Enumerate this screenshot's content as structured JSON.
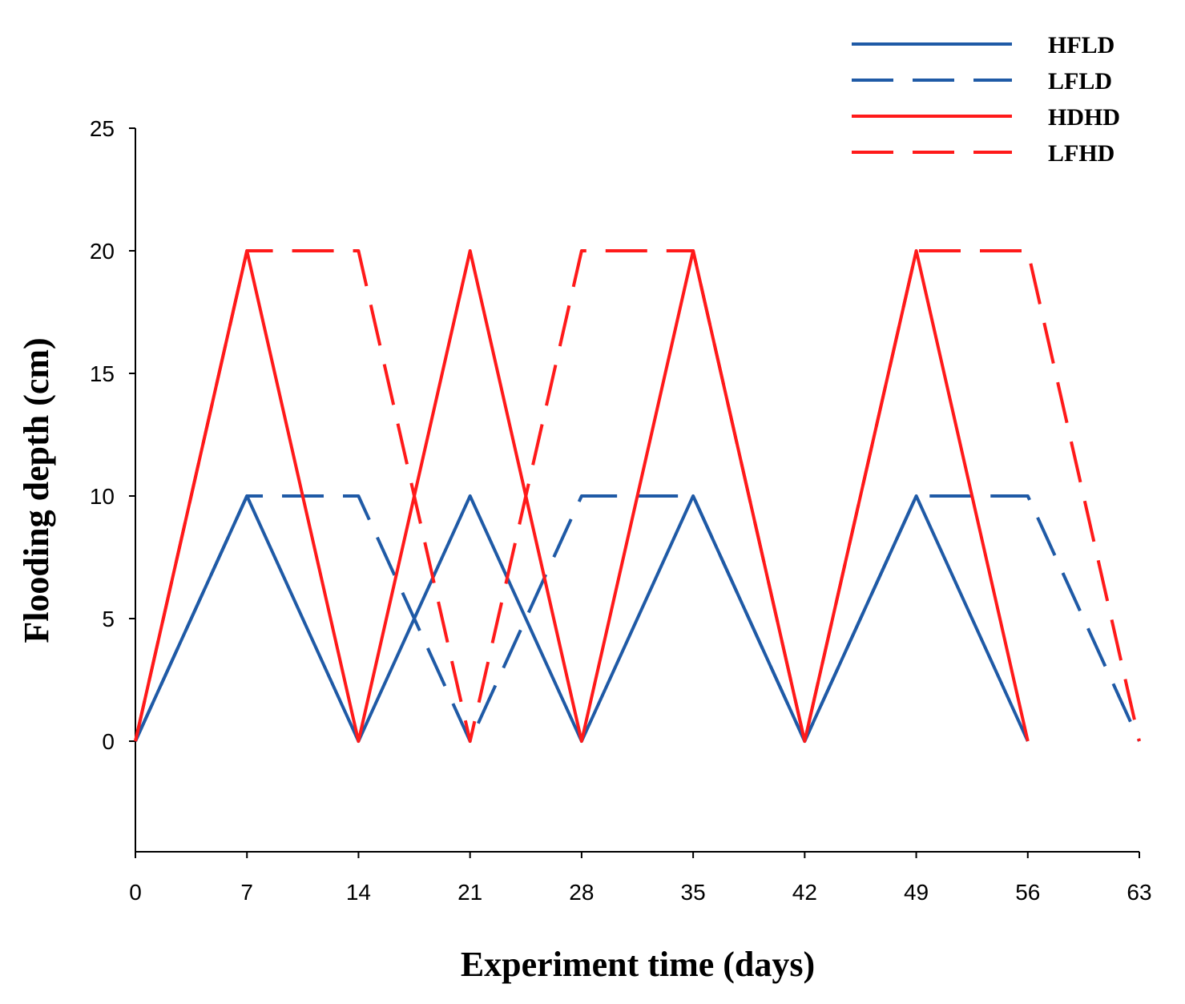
{
  "chart_data": {
    "type": "line",
    "title": "",
    "xlabel": "Experiment time (days)",
    "ylabel": "Flooding depth (cm)",
    "xlim": [
      0,
      63
    ],
    "ylim": [
      -4.5,
      25
    ],
    "xticks": [
      0,
      7,
      14,
      21,
      28,
      35,
      42,
      49,
      56,
      63
    ],
    "yticks": [
      0,
      5,
      10,
      15,
      20,
      25
    ],
    "grid": false,
    "legend_position": "top-right",
    "series": [
      {
        "name": "HFLD",
        "color": "#1f5aa6",
        "style": "solid",
        "x": [
          0,
          7,
          14,
          21,
          28,
          35,
          42,
          49,
          56
        ],
        "y": [
          0,
          10,
          0,
          10,
          0,
          10,
          0,
          10,
          0
        ]
      },
      {
        "name": "LFLD",
        "color": "#1f5aa6",
        "style": "dashed",
        "x": [
          0,
          7,
          14,
          21,
          28,
          35,
          42,
          49,
          56,
          63
        ],
        "y": [
          0,
          10,
          10,
          0,
          10,
          10,
          0,
          10,
          10,
          0
        ]
      },
      {
        "name": "HDHD",
        "color": "#ff1a1a",
        "style": "solid",
        "x": [
          0,
          7,
          14,
          21,
          28,
          35,
          42,
          49,
          56
        ],
        "y": [
          0,
          20,
          0,
          20,
          0,
          20,
          0,
          20,
          0
        ]
      },
      {
        "name": "LFHD",
        "color": "#ff1a1a",
        "style": "dashed",
        "x": [
          0,
          7,
          14,
          21,
          28,
          35,
          42,
          49,
          56,
          63
        ],
        "y": [
          0,
          20,
          20,
          0,
          20,
          20,
          0,
          20,
          20,
          0
        ]
      }
    ]
  }
}
